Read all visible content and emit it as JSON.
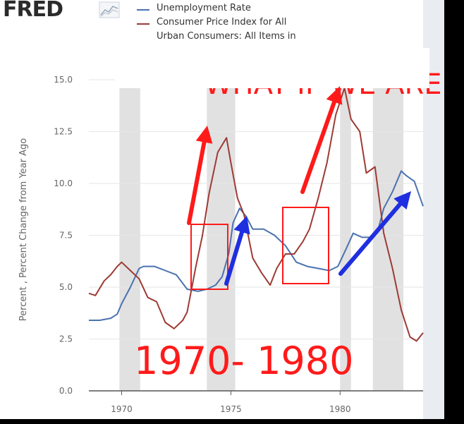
{
  "logo": {
    "text": "FRED"
  },
  "legend": [
    {
      "label": "Unemployment Rate",
      "color": "#4a72b0"
    },
    {
      "label_lines": [
        "Consumer Price Index for All",
        "Urban Consumers: All Items in"
      ],
      "color": "#9e3a34"
    }
  ],
  "annotations": {
    "period_text": "1970- 1980",
    "headline_partial": "WHAT IF WE ARE",
    "annotation_color": "#ff1a1a",
    "arrow_up_color": "#ff1a1a",
    "arrow_blue_color": "#1f2fe0"
  },
  "chart_data": {
    "type": "line",
    "ylabel": "Percent , Percent Change from Year Ago",
    "ylim": [
      0.0,
      15.0
    ],
    "xlim": [
      1968.5,
      1983.8
    ],
    "yticks": [
      "15.0",
      "12.5",
      "10.0",
      "7.5",
      "5.0",
      "2.5",
      "0.0"
    ],
    "xticks": [
      "1970",
      "1975",
      "1980"
    ],
    "grid": true,
    "recessions": [
      [
        1969.9,
        1970.85
      ],
      [
        1973.9,
        1975.2
      ],
      [
        1980.0,
        1980.5
      ],
      [
        1981.5,
        1982.9
      ]
    ],
    "series": [
      {
        "name": "Unemployment Rate",
        "color": "#4a72b0",
        "x": [
          1968.5,
          1969.0,
          1969.5,
          1969.8,
          1970.0,
          1970.4,
          1970.8,
          1971.0,
          1971.5,
          1972.0,
          1972.5,
          1973.0,
          1973.5,
          1973.9,
          1974.3,
          1974.6,
          1974.9,
          1975.1,
          1975.4,
          1975.7,
          1976.0,
          1976.5,
          1977.0,
          1977.5,
          1978.0,
          1978.5,
          1979.0,
          1979.5,
          1979.9,
          1980.3,
          1980.6,
          1981.0,
          1981.4,
          1981.7,
          1982.0,
          1982.4,
          1982.8,
          1983.0,
          1983.4,
          1983.8
        ],
        "values": [
          3.4,
          3.4,
          3.5,
          3.7,
          4.2,
          5.0,
          5.9,
          6.0,
          6.0,
          5.8,
          5.6,
          4.9,
          4.8,
          4.9,
          5.1,
          5.5,
          6.6,
          8.1,
          8.8,
          8.4,
          7.8,
          7.8,
          7.5,
          7.0,
          6.2,
          6.0,
          5.9,
          5.8,
          6.0,
          6.9,
          7.6,
          7.4,
          7.4,
          7.6,
          8.8,
          9.6,
          10.6,
          10.4,
          10.1,
          8.9
        ]
      },
      {
        "name": "Consumer Price Index for All Urban Consumers: All Items in",
        "color": "#9e3a34",
        "x": [
          1968.5,
          1968.8,
          1969.2,
          1969.5,
          1969.8,
          1970.0,
          1970.4,
          1970.8,
          1971.2,
          1971.6,
          1972.0,
          1972.4,
          1972.8,
          1973.0,
          1973.4,
          1973.7,
          1974.0,
          1974.4,
          1974.8,
          1975.0,
          1975.3,
          1975.6,
          1976.0,
          1976.4,
          1976.8,
          1977.1,
          1977.5,
          1977.9,
          1978.3,
          1978.6,
          1979.0,
          1979.4,
          1979.8,
          1980.2,
          1980.5,
          1980.9,
          1981.2,
          1981.6,
          1982.0,
          1982.4,
          1982.8,
          1983.2,
          1983.5,
          1983.8
        ],
        "values": [
          4.7,
          4.6,
          5.3,
          5.6,
          6.0,
          6.2,
          5.8,
          5.4,
          4.5,
          4.3,
          3.3,
          3.0,
          3.4,
          3.8,
          6.0,
          7.5,
          9.5,
          11.5,
          12.2,
          11.0,
          9.3,
          8.5,
          6.4,
          5.7,
          5.1,
          5.9,
          6.6,
          6.6,
          7.2,
          7.8,
          9.3,
          11.0,
          13.3,
          14.6,
          13.1,
          12.5,
          10.5,
          10.8,
          7.6,
          5.9,
          3.9,
          2.6,
          2.4,
          2.8
        ]
      }
    ]
  }
}
